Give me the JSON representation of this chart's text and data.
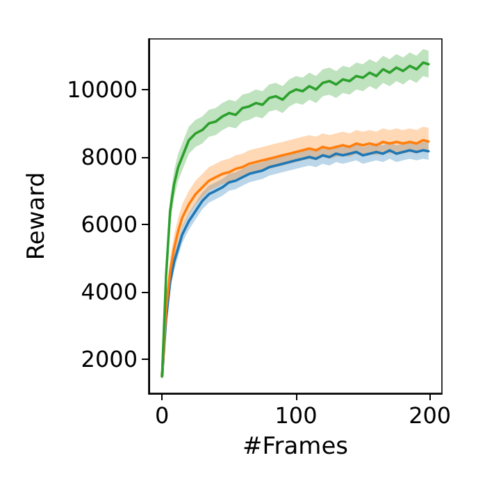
{
  "chart_data": {
    "type": "line",
    "xlabel": "#Frames",
    "ylabel": "Reward",
    "x": [
      0,
      3,
      6,
      9,
      12,
      15,
      20,
      25,
      30,
      35,
      40,
      45,
      50,
      55,
      60,
      65,
      70,
      75,
      80,
      85,
      90,
      95,
      100,
      105,
      110,
      115,
      120,
      125,
      130,
      135,
      140,
      145,
      150,
      155,
      160,
      165,
      170,
      175,
      180,
      185,
      190,
      195,
      199
    ],
    "series": [
      {
        "color": "#1f77b4",
        "values": [
          1500,
          3200,
          4300,
          4900,
          5300,
          5700,
          6100,
          6400,
          6700,
          6900,
          7000,
          7100,
          7250,
          7300,
          7400,
          7500,
          7550,
          7600,
          7700,
          7750,
          7800,
          7850,
          7900,
          7950,
          8000,
          7950,
          8050,
          8000,
          8100,
          8050,
          8100,
          8150,
          8050,
          8100,
          8150,
          8100,
          8200,
          8100,
          8150,
          8200,
          8150,
          8200,
          8170
        ],
        "lower": [
          1400,
          2950,
          4050,
          4650,
          5050,
          5450,
          5850,
          6150,
          6450,
          6650,
          6750,
          6850,
          7000,
          7050,
          7150,
          7250,
          7300,
          7350,
          7450,
          7500,
          7550,
          7600,
          7650,
          7700,
          7750,
          7700,
          7800,
          7750,
          7850,
          7800,
          7850,
          7900,
          7800,
          7850,
          7900,
          7850,
          7950,
          7850,
          7900,
          7950,
          7900,
          7950,
          7920
        ],
        "upper": [
          1600,
          3450,
          4550,
          5150,
          5550,
          5950,
          6350,
          6650,
          6950,
          7150,
          7250,
          7350,
          7500,
          7550,
          7650,
          7750,
          7800,
          7850,
          7950,
          8000,
          8050,
          8100,
          8150,
          8200,
          8250,
          8200,
          8300,
          8250,
          8350,
          8300,
          8350,
          8400,
          8300,
          8350,
          8400,
          8350,
          8450,
          8350,
          8400,
          8450,
          8400,
          8450,
          8420
        ]
      },
      {
        "color": "#ff7f0e",
        "values": [
          1500,
          3500,
          4600,
          5300,
          5800,
          6200,
          6600,
          6900,
          7100,
          7300,
          7400,
          7500,
          7550,
          7650,
          7700,
          7800,
          7850,
          7900,
          7950,
          8000,
          8050,
          8100,
          8150,
          8200,
          8250,
          8200,
          8300,
          8250,
          8300,
          8350,
          8300,
          8400,
          8350,
          8400,
          8350,
          8450,
          8400,
          8450,
          8400,
          8450,
          8400,
          8500,
          8460
        ],
        "lower": [
          1400,
          3200,
          4300,
          5000,
          5500,
          5900,
          6300,
          6600,
          6800,
          7000,
          7100,
          7200,
          7250,
          7350,
          7400,
          7500,
          7550,
          7600,
          7650,
          7700,
          7750,
          7800,
          7850,
          7900,
          7950,
          7900,
          8000,
          7950,
          8000,
          8050,
          8000,
          8100,
          8050,
          8100,
          8050,
          8150,
          8100,
          8150,
          8100,
          8150,
          8100,
          8200,
          8160
        ],
        "upper": [
          1600,
          3900,
          5000,
          5700,
          6200,
          6600,
          7000,
          7300,
          7500,
          7700,
          7800,
          7900,
          7950,
          8050,
          8100,
          8200,
          8250,
          8300,
          8350,
          8400,
          8450,
          8500,
          8550,
          8600,
          8650,
          8600,
          8700,
          8650,
          8700,
          8750,
          8700,
          8800,
          8750,
          8800,
          8750,
          8850,
          8800,
          8850,
          8800,
          8850,
          8800,
          8900,
          8860
        ]
      },
      {
        "color": "#2ca02c",
        "values": [
          1500,
          4500,
          6400,
          7200,
          7700,
          8000,
          8500,
          8700,
          8800,
          9000,
          9050,
          9200,
          9300,
          9250,
          9450,
          9500,
          9600,
          9550,
          9750,
          9800,
          9700,
          9900,
          10000,
          9950,
          10100,
          10000,
          10200,
          10250,
          10150,
          10300,
          10250,
          10400,
          10350,
          10500,
          10400,
          10600,
          10500,
          10650,
          10550,
          10700,
          10600,
          10800,
          10750
        ],
        "lower": [
          1400,
          4100,
          6000,
          6800,
          7300,
          7600,
          8100,
          8300,
          8400,
          8600,
          8650,
          8800,
          8900,
          8850,
          9050,
          9100,
          9200,
          9150,
          9350,
          9400,
          9300,
          9500,
          9600,
          9550,
          9700,
          9600,
          9800,
          9850,
          9750,
          9900,
          9850,
          10000,
          9950,
          10100,
          10000,
          10200,
          10100,
          10250,
          10150,
          10300,
          10200,
          10400,
          10350
        ],
        "upper": [
          1600,
          4900,
          6800,
          7600,
          8100,
          8400,
          8900,
          9100,
          9200,
          9400,
          9450,
          9600,
          9700,
          9650,
          9850,
          9900,
          10000,
          9950,
          10150,
          10200,
          10100,
          10300,
          10400,
          10350,
          10500,
          10400,
          10600,
          10650,
          10550,
          10700,
          10650,
          10800,
          10750,
          10900,
          10800,
          11000,
          10900,
          11050,
          10950,
          11100,
          11000,
          11200,
          11150
        ]
      }
    ],
    "xlim": [
      -10,
      209
    ],
    "xticks": [
      0,
      100,
      200
    ],
    "ylim": [
      1000,
      11500
    ],
    "yticks": [
      2000,
      4000,
      6000,
      8000,
      10000
    ],
    "grid": false,
    "marker": "none",
    "line_style": "solid"
  }
}
